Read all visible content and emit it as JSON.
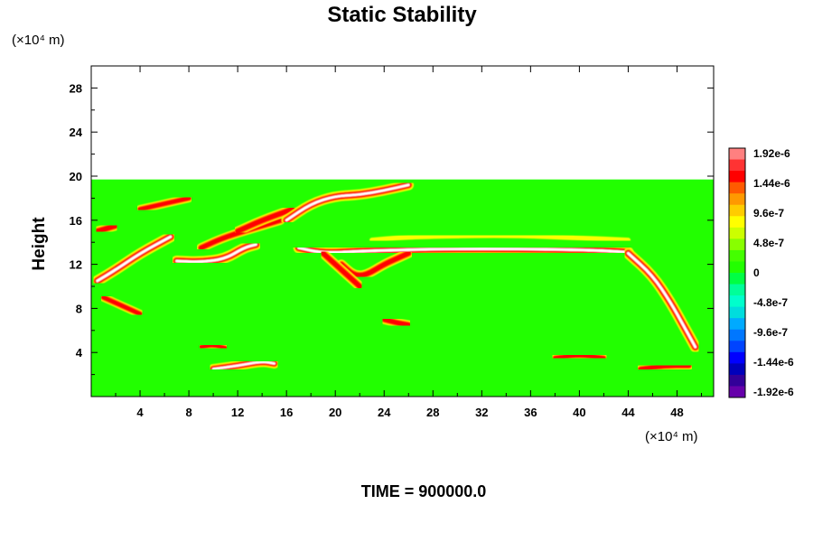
{
  "chart_data": {
    "type": "heatmap",
    "title": "Static Stability",
    "ylabel": "Height",
    "x_unit": "(×10⁴ m)",
    "y_unit": "(×10⁴ m)",
    "xlim": [
      0,
      51
    ],
    "ylim": [
      0,
      30
    ],
    "x_ticks": [
      4,
      8,
      12,
      16,
      20,
      24,
      28,
      32,
      36,
      40,
      44,
      48
    ],
    "y_ticks": [
      4,
      8,
      12,
      16,
      20,
      24,
      28
    ],
    "data_top": 19.7,
    "background_value": 0,
    "colorbar": {
      "labels": [
        "1.92e-6",
        "1.44e-6",
        "9.6e-7",
        "4.8e-7",
        "0",
        "-4.8e-7",
        "-9.6e-7",
        "-1.44e-6",
        "-1.92e-6"
      ],
      "colors": [
        "#ff8080",
        "#ff3333",
        "#ff0000",
        "#ff5a00",
        "#ff9900",
        "#ffcc00",
        "#ffff00",
        "#ccff00",
        "#88ff00",
        "#44ff00",
        "#22ff00",
        "#00ff44",
        "#00ff99",
        "#00ffcc",
        "#00dddd",
        "#00aaff",
        "#0077ff",
        "#0044ff",
        "#0000ff",
        "#0000bb",
        "#330099",
        "#6600aa"
      ]
    },
    "features": [
      {
        "x": [
          0.5,
          2,
          4,
          6.5
        ],
        "y": [
          10.5,
          11.5,
          13,
          14.5
        ],
        "value": 1.9e-06
      },
      {
        "x": [
          7,
          9,
          11,
          12.5,
          13.5
        ],
        "y": [
          12.3,
          12.2,
          12.5,
          13.5,
          13.8
        ],
        "value": 1.9e-06
      },
      {
        "x": [
          9,
          11,
          14,
          15.5
        ],
        "y": [
          13.5,
          14.5,
          15.5,
          16
        ],
        "value": 1.5e-06
      },
      {
        "x": [
          12,
          14,
          16.5
        ],
        "y": [
          15,
          16,
          17
        ],
        "value": 1.6e-06
      },
      {
        "x": [
          17,
          19,
          22,
          25,
          29,
          35,
          41,
          44
        ],
        "y": [
          13.5,
          13,
          13.2,
          13.3,
          13.4,
          13.4,
          13.3,
          13.1
        ],
        "value": 1.9e-06
      },
      {
        "x": [
          44,
          46,
          47.5,
          48.5,
          49.5
        ],
        "y": [
          13,
          11,
          8.5,
          6.5,
          4.5
        ],
        "value": 1.9e-06
      },
      {
        "x": [
          20.5,
          21.5,
          22.5,
          24,
          25,
          26
        ],
        "y": [
          12,
          11,
          11,
          12,
          12.5,
          13
        ],
        "value": 1.6e-06
      },
      {
        "x": [
          16,
          18,
          20,
          22,
          24,
          26
        ],
        "y": [
          16,
          17.5,
          18.2,
          18.3,
          18.7,
          19.2
        ],
        "value": 1.8e-06
      },
      {
        "x": [
          19,
          20,
          21,
          22
        ],
        "y": [
          13,
          12,
          11,
          10
        ],
        "value": 1.6e-06
      },
      {
        "x": [
          23,
          25,
          27,
          31,
          35,
          40,
          44
        ],
        "y": [
          14.2,
          14.4,
          14.5,
          14.6,
          14.6,
          14.4,
          14.2
        ],
        "value": 5e-07
      },
      {
        "x": [
          1,
          2,
          3,
          4
        ],
        "y": [
          9,
          8.5,
          8,
          7.5
        ],
        "value": 1.3e-06
      },
      {
        "x": [
          10,
          12,
          14,
          15
        ],
        "y": [
          2.5,
          2.8,
          3.2,
          3
        ],
        "value": 1.7e-06
      },
      {
        "x": [
          4,
          6,
          8
        ],
        "y": [
          17,
          17.5,
          18
        ],
        "value": 1.3e-06
      },
      {
        "x": [
          0.5,
          2
        ],
        "y": [
          15,
          15.5
        ],
        "value": 1.6e-06
      },
      {
        "x": [
          24,
          25,
          26
        ],
        "y": [
          7,
          6.7,
          6.5
        ],
        "value": 1.5e-06
      },
      {
        "x": [
          45,
          47,
          49
        ],
        "y": [
          2.5,
          2.8,
          2.8
        ],
        "value": 1.3e-06
      },
      {
        "x": [
          38,
          40,
          42
        ],
        "y": [
          3.5,
          3.8,
          3.5
        ],
        "value": 1.2e-06
      },
      {
        "x": [
          9,
          10,
          11
        ],
        "y": [
          4.5,
          4.7,
          4.4
        ],
        "value": 1.1e-06
      }
    ]
  },
  "footer": {
    "time_label": "TIME = 900000.0"
  }
}
